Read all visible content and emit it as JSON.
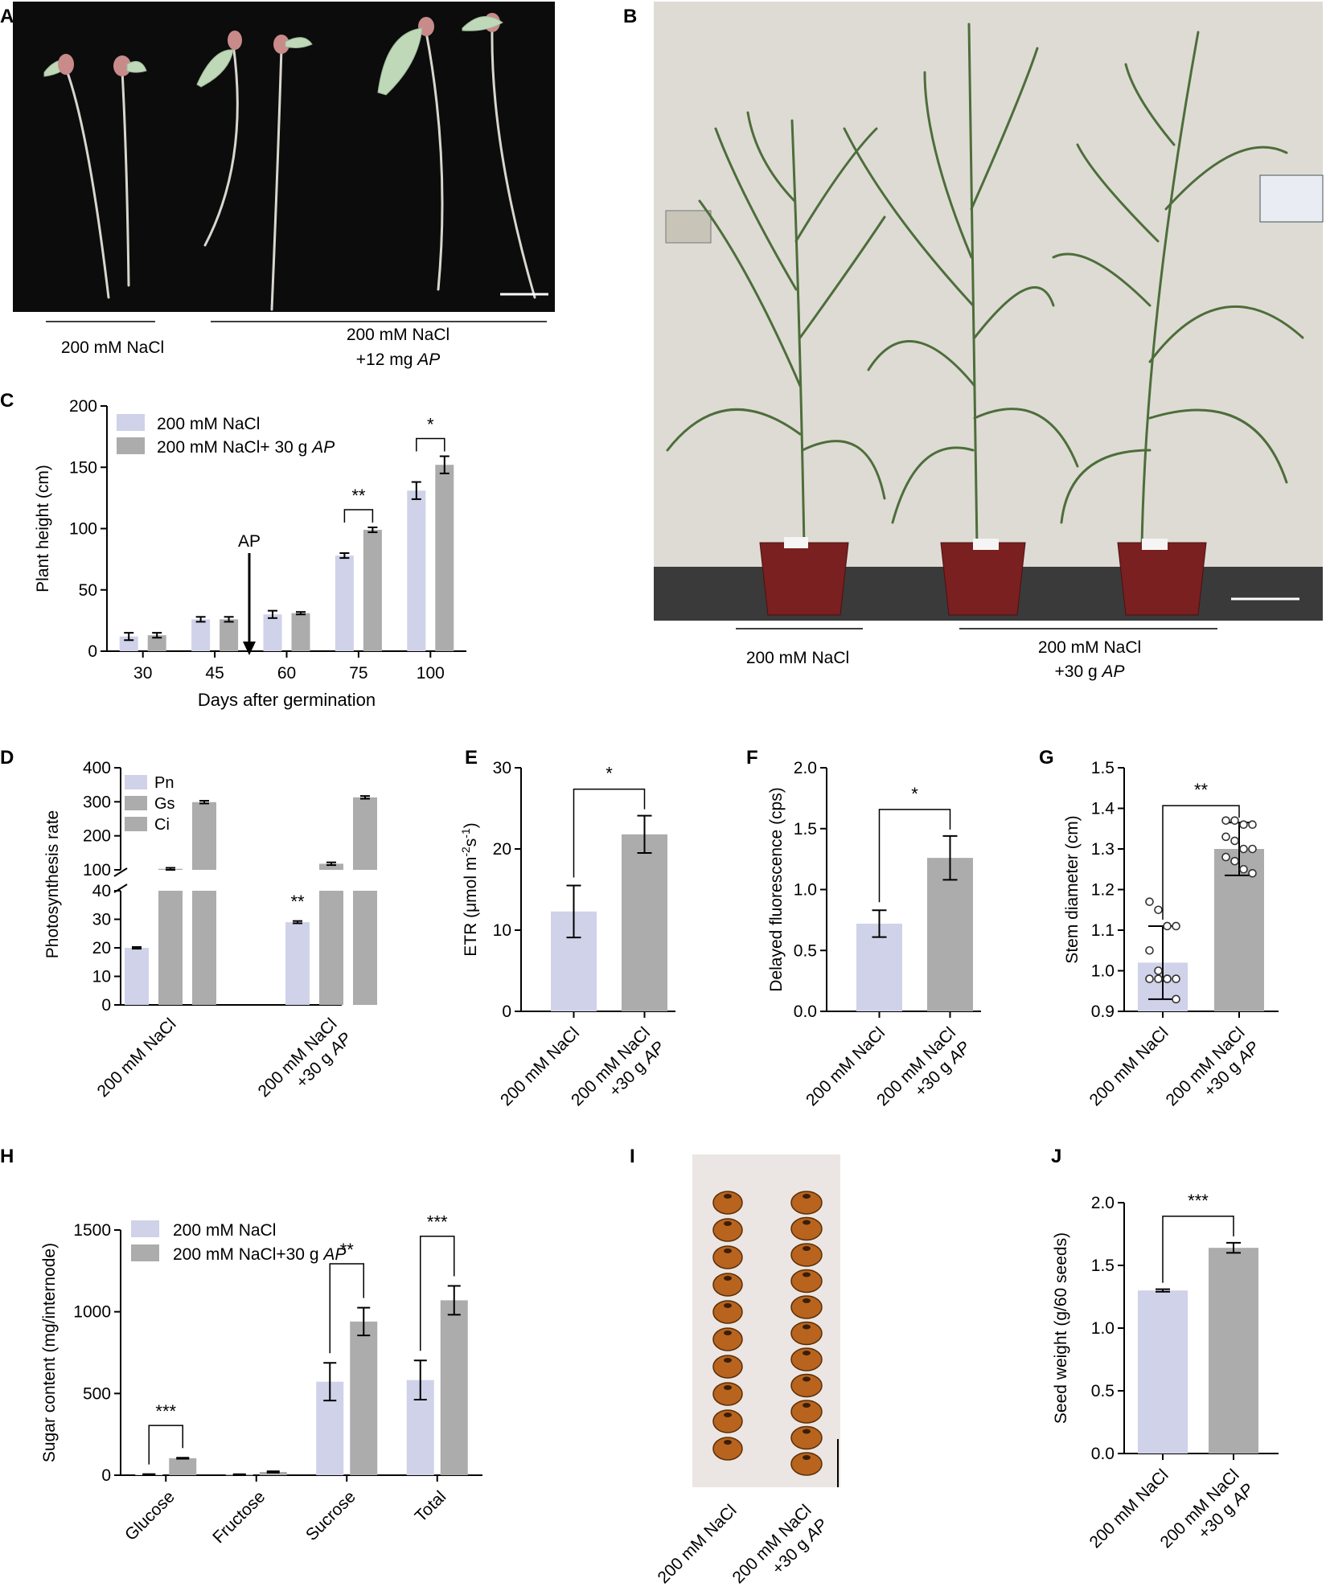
{
  "colors": {
    "nacl": "#cfd2e8",
    "ap": "#acacac",
    "axis": "#000000"
  },
  "panels": {
    "A": {
      "letter": "A",
      "label_left": "200 mM NaCl",
      "label_right_1": "200 mM NaCl",
      "label_right_2": "+12 mg ",
      "label_right_2_italic": "AP"
    },
    "B": {
      "letter": "B",
      "label_left": "200 mM NaCl",
      "label_right_1": "200 mM NaCl",
      "label_right_2": "+30 g ",
      "label_right_2_italic": "AP"
    },
    "C": {
      "letter": "C",
      "arrow_label": "AP"
    },
    "D": {
      "letter": "D"
    },
    "E": {
      "letter": "E"
    },
    "F": {
      "letter": "F"
    },
    "G": {
      "letter": "G"
    },
    "H": {
      "letter": "H"
    },
    "I": {
      "letter": "I",
      "xlabel_1": "200 mM NaCl",
      "xlabel_2a": "200 mM NaCl",
      "xlabel_2b": "+30 g ",
      "xlabel_2b_italic": "AP"
    },
    "J": {
      "letter": "J"
    }
  },
  "chart_data": [
    {
      "panel": "C",
      "type": "bar",
      "xlabel": "Days after germination",
      "ylabel": "Plant height (cm)",
      "ylim": [
        0,
        200
      ],
      "yticks": [
        "0",
        "50",
        "100",
        "150",
        "200"
      ],
      "categories": [
        "30",
        "45",
        "60",
        "75",
        "100"
      ],
      "series": [
        {
          "name": "200 mM NaCl",
          "values": [
            12,
            26,
            30,
            78,
            131
          ],
          "errors": [
            3,
            2,
            3,
            2,
            7
          ]
        },
        {
          "name": "200 mM NaCl+ 30 g ",
          "name_italic": "AP",
          "values": [
            13,
            26,
            31,
            99,
            152
          ],
          "errors": [
            2,
            2,
            1,
            2,
            7
          ]
        }
      ],
      "significance": [
        {
          "category": "75",
          "label": "**"
        },
        {
          "category": "100",
          "label": "*"
        }
      ],
      "legend": "top-left"
    },
    {
      "panel": "D",
      "type": "bar",
      "ylabel": "Photosynthesis rate",
      "yticks_upper": [
        "100",
        "200",
        "300",
        "400"
      ],
      "yticks_lower": [
        "0",
        "10",
        "20",
        "30",
        "40"
      ],
      "categories": [
        "200 mM NaCl",
        "200 mM NaCl"
      ],
      "categories_line2": [
        "",
        "+30 g "
      ],
      "categories_line2_italic": [
        "",
        "AP"
      ],
      "series": [
        {
          "name": "Pn",
          "values": [
            20,
            29
          ],
          "errors": [
            0.3,
            0.4
          ]
        },
        {
          "name": "Gs",
          "values": [
            103,
            118
          ],
          "errors": [
            3,
            4
          ]
        },
        {
          "name": "Ci",
          "values": [
            299,
            313
          ],
          "errors": [
            4,
            4
          ]
        }
      ],
      "significance": [
        {
          "category": 1,
          "series": "Pn",
          "label": "**"
        }
      ],
      "legend": "top-left"
    },
    {
      "panel": "E",
      "type": "bar",
      "ylabel_html": "ETR",
      "ylabel_parts": [
        "ETR (μmol m",
        "-2",
        "s",
        "-1",
        ")"
      ],
      "ylim": [
        0,
        30
      ],
      "yticks": [
        "0",
        "10",
        "20",
        "30"
      ],
      "categories": [
        "200 mM NaCl",
        "200 mM NaCl"
      ],
      "categories_line2": [
        "",
        "+30 g "
      ],
      "categories_line2_italic": [
        "",
        "AP"
      ],
      "values": [
        12.3,
        21.8
      ],
      "errors": [
        3.2,
        2.3
      ],
      "significance": "*"
    },
    {
      "panel": "F",
      "type": "bar",
      "ylabel": "Delayed fluorescence (cps)",
      "ylim": [
        0,
        2.0
      ],
      "yticks": [
        "0.0",
        "0.5",
        "1.0",
        "1.5",
        "2.0"
      ],
      "categories": [
        "200 mM NaCl",
        "200 mM NaCl"
      ],
      "categories_line2": [
        "",
        "+30 g "
      ],
      "categories_line2_italic": [
        "",
        "AP"
      ],
      "values": [
        0.72,
        1.26
      ],
      "errors": [
        0.11,
        0.18
      ],
      "significance": "*"
    },
    {
      "panel": "G",
      "type": "bar",
      "ylabel": "Stem diameter (cm)",
      "ylim": [
        0.9,
        1.5
      ],
      "yticks": [
        "0.9",
        "1.0",
        "1.1",
        "1.2",
        "1.3",
        "1.4",
        "1.5"
      ],
      "categories": [
        "200 mM NaCl",
        "200 mM NaCl"
      ],
      "categories_line2": [
        "",
        "+30 g "
      ],
      "categories_line2_italic": [
        "",
        "AP"
      ],
      "values": [
        1.02,
        1.3
      ],
      "errors": [
        0.09,
        0.065
      ],
      "points": [
        [
          1.17,
          1.15,
          1.11,
          1.11,
          1.05,
          1.0,
          0.98,
          0.98,
          0.98,
          0.98,
          0.98,
          0.93
        ],
        [
          1.37,
          1.37,
          1.36,
          1.36,
          1.33,
          1.32,
          1.3,
          1.3,
          1.28,
          1.27,
          1.25,
          1.24
        ]
      ],
      "significance": "**"
    },
    {
      "panel": "H",
      "type": "bar",
      "ylabel": "Sugar content (mg/internode)",
      "ylim": [
        0,
        1500
      ],
      "yticks": [
        "0",
        "500",
        "1000",
        "1500"
      ],
      "categories": [
        "Glucose",
        "Fructose",
        "Sucrose",
        "Total"
      ],
      "series": [
        {
          "name": "200 mM NaCl",
          "values": [
            5,
            4,
            572,
            582
          ],
          "errors": [
            2,
            2,
            115,
            120
          ]
        },
        {
          "name": "200 mM NaCl+30 g ",
          "name_italic": "AP",
          "values": [
            104,
            20,
            940,
            1070
          ],
          "errors": [
            3,
            4,
            85,
            88
          ]
        }
      ],
      "significance": [
        {
          "category": "Glucose",
          "label": "***"
        },
        {
          "category": "Sucrose",
          "label": "**"
        },
        {
          "category": "Total",
          "label": "***"
        }
      ],
      "legend": "top-left"
    },
    {
      "panel": "J",
      "type": "bar",
      "ylabel": "Seed weight (g/60 seeds)",
      "ylim": [
        0,
        2.0
      ],
      "yticks": [
        "0.0",
        "0.5",
        "1.0",
        "1.5",
        "2.0"
      ],
      "categories": [
        "200 mM NaCl",
        "200 mM NaCl"
      ],
      "categories_line2": [
        "",
        "+30 g "
      ],
      "categories_line2_italic": [
        "",
        "AP"
      ],
      "values": [
        1.3,
        1.64
      ],
      "errors": [
        0.01,
        0.04
      ],
      "significance": "***"
    }
  ]
}
